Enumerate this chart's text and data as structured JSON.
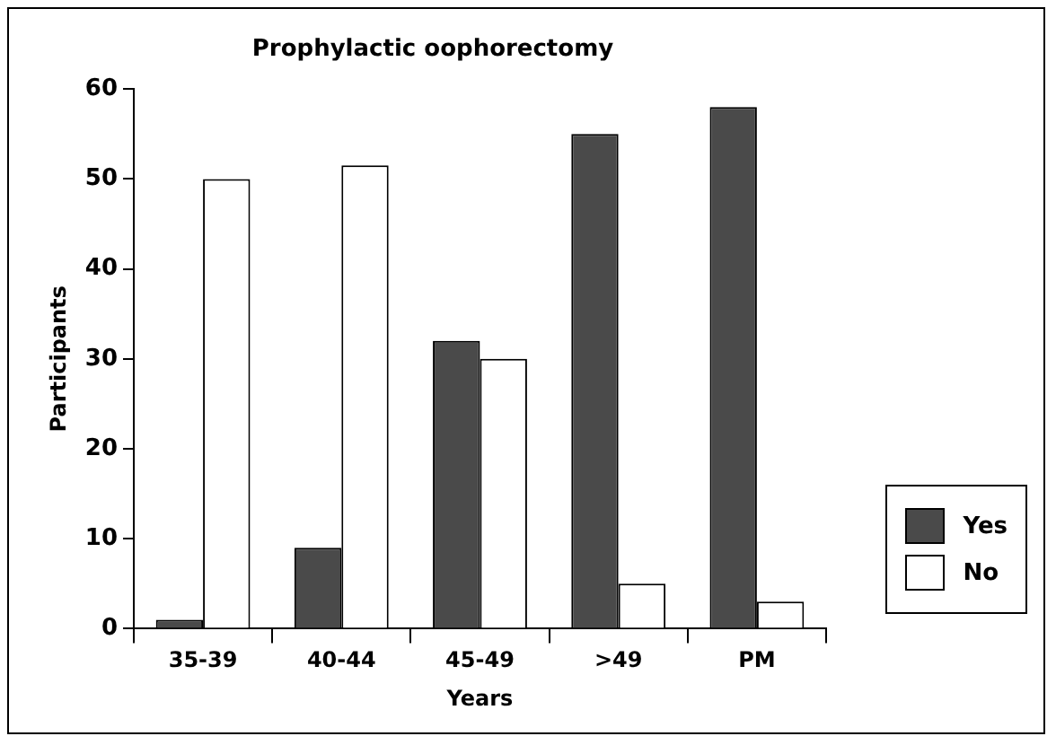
{
  "chart_data": {
    "type": "bar",
    "title": "Prophylactic oophorectomy",
    "xlabel": "Years",
    "ylabel": "Participants",
    "categories": [
      "35-39",
      "40-44",
      "45-49",
      ">49",
      "PM"
    ],
    "series": [
      {
        "name": "Yes",
        "color": "#4a4a4a",
        "values": [
          1,
          9,
          32,
          55,
          58
        ]
      },
      {
        "name": "No",
        "color": "#ffffff",
        "values": [
          50,
          51.5,
          30,
          5,
          3
        ]
      }
    ],
    "ylim": [
      0,
      60
    ],
    "yticks": [
      0,
      10,
      20,
      30,
      40,
      50,
      60
    ],
    "grid": false,
    "legend": "right"
  }
}
